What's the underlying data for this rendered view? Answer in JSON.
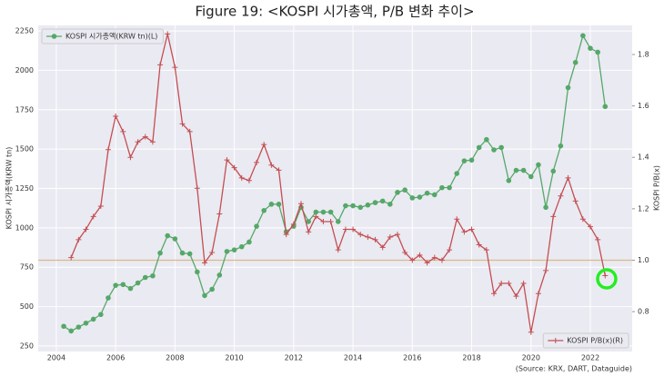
{
  "chart_data": {
    "type": "line",
    "title": "Figure 19: <KOSPI 시가총액, P/B 변화 추이>",
    "ylabel": "KOSPI 시가총액(KRW tn)",
    "y2label": "KOSPI P/B(x)",
    "source": "(Source: KRX, DART, Dataguide)",
    "x": [
      2004.25,
      2004.5,
      2004.75,
      2005,
      2005.25,
      2005.5,
      2005.75,
      2006,
      2006.25,
      2006.5,
      2006.75,
      2007,
      2007.25,
      2007.5,
      2007.75,
      2008,
      2008.25,
      2008.5,
      2008.75,
      2009,
      2009.25,
      2009.5,
      2009.75,
      2010,
      2010.25,
      2010.5,
      2010.75,
      2011,
      2011.25,
      2011.5,
      2011.75,
      2012,
      2012.25,
      2012.5,
      2012.75,
      2013,
      2013.25,
      2013.5,
      2013.75,
      2014,
      2014.25,
      2014.5,
      2014.75,
      2015,
      2015.25,
      2015.5,
      2015.75,
      2016,
      2016.25,
      2016.5,
      2016.75,
      2017,
      2017.25,
      2017.5,
      2017.75,
      2018,
      2018.25,
      2018.5,
      2018.75,
      2019,
      2019.25,
      2019.5,
      2019.75,
      2020,
      2020.25,
      2020.5,
      2020.75,
      2021,
      2021.25,
      2021.5,
      2021.75,
      2022,
      2022.25,
      2022.5
    ],
    "series": [
      {
        "name": "KOSPI 시가총액(KRW tn)(L)",
        "color": "#55a868",
        "axis": "y",
        "marker": "circle",
        "legend": "upper left",
        "values": [
          375,
          345,
          370,
          395,
          420,
          450,
          555,
          635,
          640,
          615,
          650,
          685,
          695,
          840,
          950,
          930,
          840,
          835,
          720,
          570,
          610,
          700,
          850,
          860,
          880,
          910,
          1010,
          1110,
          1150,
          1150,
          975,
          1010,
          1130,
          1040,
          1100,
          1100,
          1100,
          1040,
          1140,
          1140,
          1130,
          1145,
          1160,
          1170,
          1150,
          1225,
          1240,
          1190,
          1195,
          1220,
          1210,
          1255,
          1255,
          1345,
          1425,
          1430,
          1510,
          1560,
          1495,
          1510,
          1300,
          1365,
          1365,
          1325,
          1400,
          1130,
          1360,
          1520,
          1890,
          2050,
          2220,
          2140,
          2115,
          1770
        ]
      },
      {
        "name": "KOSPI P/B(x)(R)",
        "color": "#c44e52",
        "axis": "y2",
        "marker": "plus",
        "legend": "lower right",
        "values": [
          null,
          1.01,
          1.08,
          1.12,
          1.17,
          1.21,
          1.43,
          1.56,
          1.5,
          1.4,
          1.46,
          1.48,
          1.46,
          1.76,
          1.88,
          1.75,
          1.53,
          1.5,
          1.28,
          0.99,
          1.03,
          1.18,
          1.39,
          1.36,
          1.32,
          1.31,
          1.38,
          1.45,
          1.37,
          1.35,
          1.1,
          1.14,
          1.22,
          1.11,
          1.17,
          1.15,
          1.15,
          1.04,
          1.12,
          1.12,
          1.1,
          1.09,
          1.08,
          1.05,
          1.09,
          1.1,
          1.03,
          1.0,
          1.02,
          0.99,
          1.01,
          1.0,
          1.04,
          1.16,
          1.11,
          1.12,
          1.06,
          1.04,
          0.87,
          0.91,
          0.91,
          0.86,
          0.91,
          0.72,
          0.87,
          0.96,
          1.17,
          1.25,
          1.32,
          1.23,
          1.16,
          1.13,
          1.08,
          0.94
        ]
      }
    ],
    "reference_line": {
      "value": 1.0,
      "axis": "y2",
      "color": "#d9b98a"
    },
    "xlim": [
      2003.39,
      2023.41
    ],
    "xticks": [
      2004,
      2006,
      2008,
      2010,
      2012,
      2014,
      2016,
      2018,
      2020,
      2022
    ],
    "ylim": [
      215,
      2285
    ],
    "yticks": [
      250,
      500,
      750,
      1000,
      1250,
      1500,
      1750,
      2000,
      2250
    ],
    "y2lim": [
      0.645,
      1.913
    ],
    "y2ticks": [
      0.8,
      {
        "value": 1,
        "label": "1.0"
      },
      1.2,
      1.4,
      1.6,
      1.8
    ],
    "grid": true
  }
}
